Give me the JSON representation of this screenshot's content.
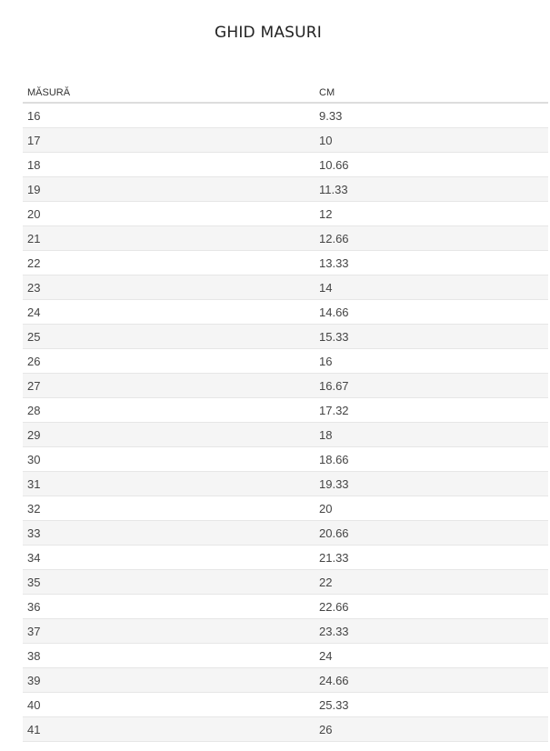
{
  "title": "GHID MASURI",
  "table": {
    "headers": [
      "MĂSURĂ",
      "CM"
    ],
    "rows": [
      [
        "16",
        "9.33"
      ],
      [
        "17",
        "10"
      ],
      [
        "18",
        "10.66"
      ],
      [
        "19",
        "11.33"
      ],
      [
        "20",
        "12"
      ],
      [
        "21",
        "12.66"
      ],
      [
        "22",
        "13.33"
      ],
      [
        "23",
        "14"
      ],
      [
        "24",
        "14.66"
      ],
      [
        "25",
        "15.33"
      ],
      [
        "26",
        "16"
      ],
      [
        "27",
        "16.67"
      ],
      [
        "28",
        "17.32"
      ],
      [
        "29",
        "18"
      ],
      [
        "30",
        "18.66"
      ],
      [
        "31",
        "19.33"
      ],
      [
        "32",
        "20"
      ],
      [
        "33",
        "20.66"
      ],
      [
        "34",
        "21.33"
      ],
      [
        "35",
        "22"
      ],
      [
        "36",
        "22.66"
      ],
      [
        "37",
        "23.33"
      ],
      [
        "38",
        "24"
      ],
      [
        "39",
        "24.66"
      ],
      [
        "40",
        "25.33"
      ],
      [
        "41",
        "26"
      ]
    ]
  },
  "colors": {
    "stripe": "#f5f5f5",
    "border": "#dddddd"
  }
}
